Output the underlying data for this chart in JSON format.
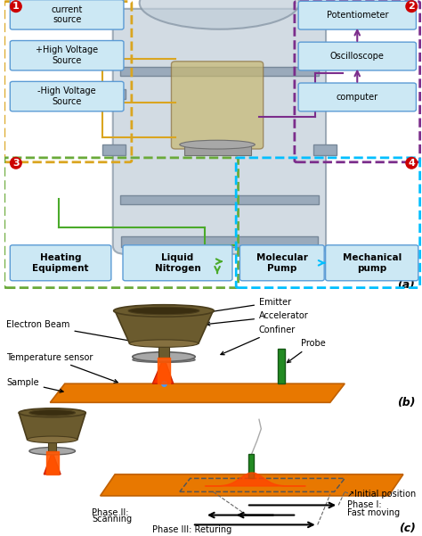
{
  "bg_color": "#ffffff",
  "panel_a": {
    "zone1_color": "#DAA520",
    "zone2_color": "#7B2D8B",
    "zone3_color": "#6aaa3a",
    "zone4_color": "#00BFFF",
    "box_fill": "#cce8f4",
    "box_edge": "#5b9bd5",
    "boxes_left": [
      "current\nsource",
      "+High Voltage\nSource",
      "-High Voltage\nSource"
    ],
    "boxes_right": [
      "Potentiometer",
      "Oscilloscope",
      "computer"
    ],
    "number_color": "#cc0000",
    "vessel_fill": "#b8c8d8",
    "vessel_edge": "#888899",
    "wire_yellow": "#DAA520",
    "wire_purple": "#7B2D8B",
    "wire_green": "#4aaa2a",
    "wire_cyan": "#00BFFF"
  },
  "panel_b": {
    "platform_color": "#E87800",
    "gun_color": "#6B5B2E",
    "gun_dark": "#3a2e10",
    "beam_color": "#FF4500",
    "probe_color": "#228B22",
    "confiner_color": "#A8A8A8",
    "sensor_color": "#4499ff"
  },
  "panel_c": {
    "platform_color": "#E87800",
    "gun_color": "#6B5B2E",
    "gun_dark": "#3a2e10",
    "beam_color": "#FF4500",
    "probe_color": "#228B22",
    "confiner_color": "#A8A8A8"
  }
}
